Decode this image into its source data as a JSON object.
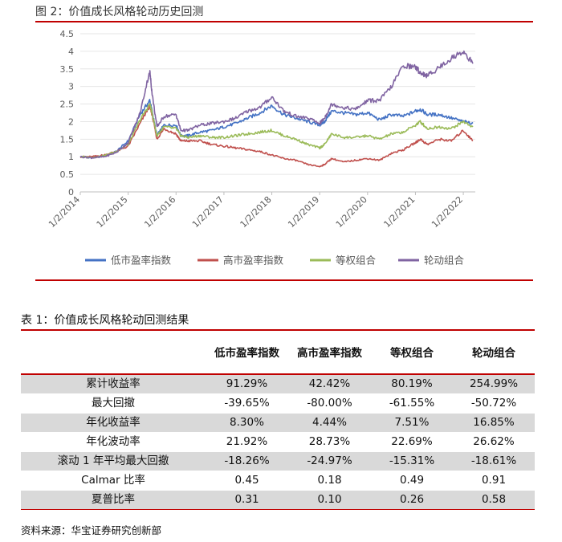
{
  "figure": {
    "title": "图 2：价值成长风格轮动历史回测"
  },
  "chart_data": {
    "type": "line",
    "title": "价值成长风格轮动历史回测",
    "ylim": [
      0,
      4.5
    ],
    "yticks": [
      "0",
      "0.5",
      "1",
      "1.5",
      "2",
      "2.5",
      "3",
      "3.5",
      "4",
      "4.5"
    ],
    "ytick_values": [
      0,
      0.5,
      1,
      1.5,
      2,
      2.5,
      3,
      3.5,
      4,
      4.5
    ],
    "xlim": [
      2014.0,
      2022.25
    ],
    "xticks": [
      "1/2/2014",
      "1/2/2015",
      "1/2/2016",
      "1/2/2017",
      "1/2/2018",
      "1/2/2019",
      "1/2/2020",
      "1/2/2021",
      "1/2/2022"
    ],
    "xtick_values": [
      2014,
      2015,
      2016,
      2017,
      2018,
      2019,
      2020,
      2021,
      2022
    ],
    "legend_position": "bottom",
    "grid": "horizontal",
    "x": [
      2014.0,
      2014.25,
      2014.5,
      2014.75,
      2015.0,
      2015.25,
      2015.45,
      2015.5,
      2015.6,
      2015.75,
      2016.0,
      2016.1,
      2016.25,
      2016.5,
      2016.75,
      2017.0,
      2017.25,
      2017.5,
      2017.75,
      2018.0,
      2018.25,
      2018.5,
      2018.75,
      2019.0,
      2019.1,
      2019.25,
      2019.5,
      2019.75,
      2020.0,
      2020.25,
      2020.5,
      2020.75,
      2021.0,
      2021.1,
      2021.25,
      2021.5,
      2021.75,
      2022.0,
      2022.2
    ],
    "series": [
      {
        "name": "低市盈率指数",
        "color": "#4472c4",
        "values": [
          1.0,
          0.98,
          1.02,
          1.15,
          1.45,
          2.2,
          2.6,
          2.3,
          1.6,
          1.9,
          1.9,
          1.6,
          1.6,
          1.7,
          1.75,
          1.85,
          1.95,
          2.1,
          2.25,
          2.45,
          2.2,
          2.1,
          2.0,
          1.9,
          2.0,
          2.3,
          2.25,
          2.2,
          2.25,
          2.05,
          2.2,
          2.15,
          2.3,
          2.35,
          2.2,
          2.2,
          2.1,
          2.0,
          1.95
        ]
      },
      {
        "name": "高市盈率指数",
        "color": "#c0504d",
        "values": [
          1.0,
          1.0,
          1.05,
          1.15,
          1.3,
          1.95,
          2.45,
          2.2,
          1.5,
          1.8,
          1.65,
          1.45,
          1.45,
          1.45,
          1.35,
          1.3,
          1.25,
          1.2,
          1.15,
          1.05,
          0.95,
          0.9,
          0.78,
          0.72,
          0.78,
          0.95,
          0.85,
          0.9,
          0.95,
          0.9,
          1.1,
          1.2,
          1.4,
          1.5,
          1.35,
          1.5,
          1.45,
          1.75,
          1.45
        ]
      },
      {
        "name": "等权组合",
        "color": "#9bbb59",
        "values": [
          1.0,
          0.98,
          1.03,
          1.15,
          1.35,
          2.05,
          2.5,
          2.25,
          1.6,
          1.85,
          1.8,
          1.6,
          1.55,
          1.6,
          1.55,
          1.55,
          1.6,
          1.65,
          1.7,
          1.75,
          1.6,
          1.5,
          1.35,
          1.25,
          1.35,
          1.65,
          1.55,
          1.55,
          1.6,
          1.5,
          1.65,
          1.7,
          1.9,
          2.0,
          1.8,
          1.85,
          1.8,
          2.0,
          1.85
        ]
      },
      {
        "name": "轮动组合",
        "color": "#8064a2",
        "values": [
          1.0,
          0.97,
          1.0,
          1.12,
          1.4,
          2.25,
          3.45,
          2.8,
          1.85,
          2.15,
          2.2,
          1.75,
          1.75,
          1.9,
          1.95,
          2.0,
          2.1,
          2.3,
          2.4,
          2.7,
          2.3,
          2.15,
          2.1,
          1.95,
          2.1,
          2.5,
          2.4,
          2.35,
          2.6,
          2.6,
          3.0,
          3.6,
          3.55,
          3.4,
          3.3,
          3.55,
          3.8,
          4.0,
          3.65
        ]
      }
    ]
  },
  "table": {
    "title": "表 1：价值成长风格轮动回测结果",
    "headers": [
      "",
      "低市盈率指数",
      "高市盈率指数",
      "等权组合",
      "轮动组合"
    ],
    "rows": [
      [
        "累计收益率",
        "91.29%",
        "42.42%",
        "80.19%",
        "254.99%"
      ],
      [
        "最大回撤",
        "-39.65%",
        "-80.00%",
        "-61.55%",
        "-50.72%"
      ],
      [
        "年化收益率",
        "8.30%",
        "4.44%",
        "7.51%",
        "16.85%"
      ],
      [
        "年化波动率",
        "21.92%",
        "28.73%",
        "22.69%",
        "26.62%"
      ],
      [
        "滚动 1 年平均最大回撤",
        "-18.26%",
        "-24.97%",
        "-15.31%",
        "-18.61%"
      ],
      [
        "Calmar 比率",
        "0.45",
        "0.18",
        "0.49",
        "0.91"
      ],
      [
        "夏普比率",
        "0.31",
        "0.10",
        "0.26",
        "0.58"
      ]
    ]
  },
  "source": "资料来源：华宝证券研究创新部"
}
